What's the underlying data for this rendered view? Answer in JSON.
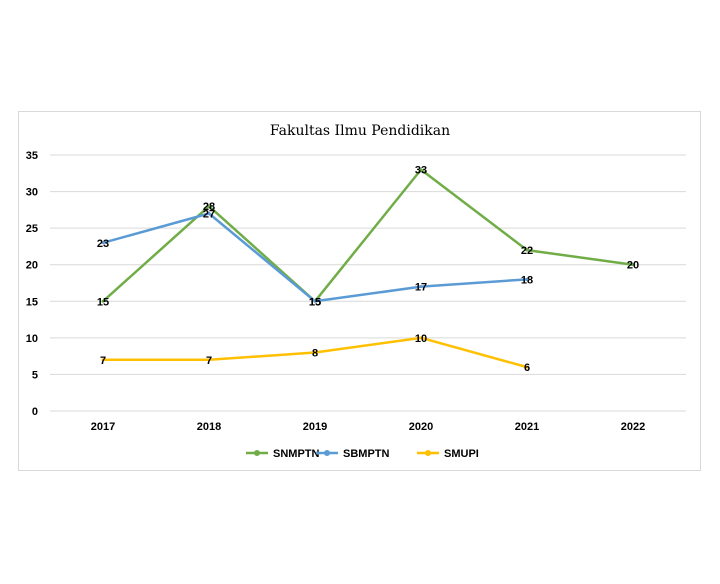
{
  "chart_data": {
    "type": "line",
    "title": "Fakultas Ilmu Pendidikan",
    "categories": [
      "2017",
      "2018",
      "2019",
      "2020",
      "2021",
      "2022"
    ],
    "ylim": [
      0,
      35
    ],
    "yticks": [
      0,
      5,
      10,
      15,
      20,
      25,
      30,
      35
    ],
    "grid": true,
    "legend_position": "bottom",
    "series": [
      {
        "name": "SNMPTN",
        "color": "#70ad47",
        "values": [
          15,
          28,
          15,
          33,
          22,
          20
        ]
      },
      {
        "name": "SBMPTN",
        "color": "#5b9bd5",
        "values": [
          23,
          27,
          15,
          17,
          18,
          null
        ]
      },
      {
        "name": "SMUPI",
        "color": "#ffc000",
        "values": [
          7,
          7,
          8,
          10,
          6,
          null
        ]
      }
    ]
  }
}
